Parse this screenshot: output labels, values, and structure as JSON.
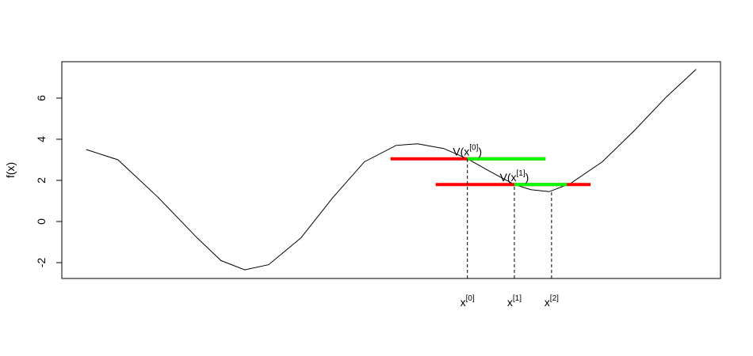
{
  "chart_data": {
    "type": "line",
    "ylabel": "f(x)",
    "xlim": [
      -0.4,
      10.4
    ],
    "ylim": [
      -2.77,
      7.77
    ],
    "yticks": [
      -2,
      0,
      2,
      4,
      6
    ],
    "series": [
      {
        "color": "#000000",
        "x": [
          0,
          0.52,
          1.17,
          1.82,
          2.21,
          2.6,
          2.99,
          3.52,
          4.04,
          4.56,
          5.08,
          5.43,
          5.86,
          6.25,
          6.64,
          7.02,
          7.29,
          7.59,
          7.94,
          8.46,
          8.98,
          9.51,
          10
        ],
        "values": [
          3.5,
          3.0,
          1.2,
          -0.8,
          -1.9,
          -2.35,
          -2.1,
          -0.8,
          1.15,
          2.9,
          3.7,
          3.78,
          3.55,
          3.05,
          2.4,
          1.8,
          1.55,
          1.45,
          1.85,
          2.9,
          4.4,
          6.05,
          7.4
        ]
      }
    ],
    "segments": [
      {
        "color": "#ff0000",
        "x0": 4.99,
        "x1": 7.53,
        "y": 3.05
      },
      {
        "color": "#00ff00",
        "x0": 6.25,
        "x1": 7.53,
        "y": 3.05
      },
      {
        "color": "#ff0000",
        "x0": 5.73,
        "x1": 8.27,
        "y": 1.8
      },
      {
        "color": "#00ff00",
        "x0": 7.02,
        "x1": 7.88,
        "y": 1.8
      }
    ],
    "points": [
      {
        "x": 6.25,
        "y": 3.05,
        "label": "x",
        "sup": "[0]"
      },
      {
        "x": 7.02,
        "y": 1.8,
        "label": "x",
        "sup": "[1]"
      },
      {
        "x": 7.63,
        "y": 1.45,
        "label": "x",
        "sup": "[2]"
      }
    ],
    "annotations": [
      {
        "x": 6.25,
        "y": 3.05,
        "text": "V(x",
        "sup": "[0]",
        "close": ")"
      },
      {
        "x": 7.02,
        "y": 1.8,
        "text": "V(x",
        "sup": "[1]",
        "close": ")"
      }
    ]
  }
}
